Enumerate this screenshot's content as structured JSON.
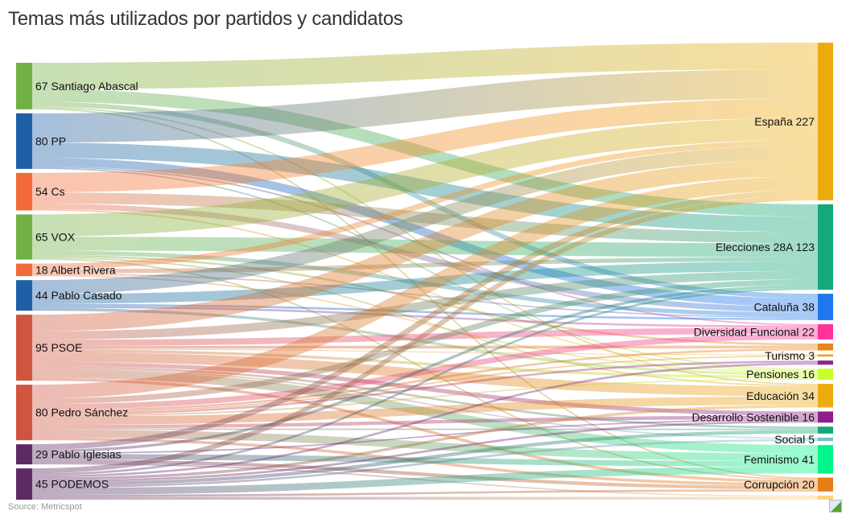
{
  "chart_data": {
    "type": "sankey",
    "title": "Temas más utilizados por partidos y candidatos",
    "source_note": "Source: Metricspot",
    "sources": [
      {
        "name": "Santiago Abascal",
        "value": 67,
        "color": "#72b043"
      },
      {
        "name": "PP",
        "value": 80,
        "color": "#1f5fa8"
      },
      {
        "name": "Cs",
        "value": 54,
        "color": "#f26a3a"
      },
      {
        "name": "VOX",
        "value": 65,
        "color": "#72b043"
      },
      {
        "name": "Albert Rivera",
        "value": 18,
        "color": "#f26a3a"
      },
      {
        "name": "Pablo Casado",
        "value": 44,
        "color": "#1f5fa8"
      },
      {
        "name": "PSOE",
        "value": 95,
        "color": "#d0553f"
      },
      {
        "name": "Pedro Sánchez",
        "value": 80,
        "color": "#d0553f"
      },
      {
        "name": "Pablo Iglesias",
        "value": 29,
        "color": "#5e2a64"
      },
      {
        "name": "PODEMOS",
        "value": 45,
        "color": "#5e2a64"
      }
    ],
    "targets": [
      {
        "name": "España",
        "value": 227,
        "color": "#eeab0f"
      },
      {
        "name": "Elecciones 28A",
        "value": 123,
        "color": "#14a87a"
      },
      {
        "name": "Cataluña",
        "value": 38,
        "color": "#1f77f0"
      },
      {
        "name": "Diversidad Funcional",
        "value": 22,
        "color": "#ff3399"
      },
      {
        "name": "",
        "value": 10,
        "color": "#e8851b"
      },
      {
        "name": "Turismo",
        "value": 3,
        "color": "#e6a81a"
      },
      {
        "name": "",
        "value": 6,
        "color": "#8a2a8a"
      },
      {
        "name": "Pensiones",
        "value": 16,
        "color": "#c8ff2a"
      },
      {
        "name": "Educación",
        "value": 34,
        "color": "#eeab0f"
      },
      {
        "name": "Desarrollo Sostenible",
        "value": 16,
        "color": "#8b1f8b"
      },
      {
        "name": "",
        "value": 10,
        "color": "#14a87a"
      },
      {
        "name": "Social",
        "value": 5,
        "color": "#6cc4cc"
      },
      {
        "name": "Feminismo",
        "value": 41,
        "color": "#00f58a"
      },
      {
        "name": "Corrupción",
        "value": 20,
        "color": "#e67e17"
      },
      {
        "name": "",
        "value": 6,
        "color": "#ffd27a"
      }
    ],
    "links": [
      [
        0,
        0,
        38
      ],
      [
        0,
        1,
        18
      ],
      [
        0,
        2,
        7
      ],
      [
        0,
        8,
        2
      ],
      [
        0,
        13,
        2
      ],
      [
        1,
        0,
        42
      ],
      [
        1,
        1,
        22
      ],
      [
        1,
        2,
        12
      ],
      [
        1,
        3,
        2
      ],
      [
        1,
        7,
        2
      ],
      [
        2,
        0,
        28
      ],
      [
        2,
        1,
        16
      ],
      [
        2,
        2,
        8
      ],
      [
        2,
        7,
        2
      ],
      [
        3,
        0,
        32
      ],
      [
        3,
        1,
        20
      ],
      [
        3,
        2,
        6
      ],
      [
        3,
        4,
        3
      ],
      [
        3,
        8,
        2
      ],
      [
        3,
        13,
        2
      ],
      [
        4,
        0,
        8
      ],
      [
        4,
        1,
        6
      ],
      [
        4,
        2,
        2
      ],
      [
        4,
        7,
        2
      ],
      [
        5,
        0,
        20
      ],
      [
        5,
        1,
        14
      ],
      [
        5,
        2,
        3
      ],
      [
        5,
        3,
        3
      ],
      [
        5,
        7,
        4
      ],
      [
        6,
        0,
        24
      ],
      [
        6,
        1,
        12
      ],
      [
        6,
        3,
        9
      ],
      [
        6,
        4,
        4
      ],
      [
        6,
        5,
        1
      ],
      [
        6,
        7,
        4
      ],
      [
        6,
        8,
        14
      ],
      [
        6,
        9,
        6
      ],
      [
        6,
        10,
        3
      ],
      [
        6,
        11,
        2
      ],
      [
        6,
        12,
        12
      ],
      [
        6,
        13,
        4
      ],
      [
        7,
        0,
        20
      ],
      [
        7,
        1,
        8
      ],
      [
        7,
        3,
        8
      ],
      [
        7,
        4,
        3
      ],
      [
        7,
        5,
        2
      ],
      [
        7,
        6,
        3
      ],
      [
        7,
        7,
        2
      ],
      [
        7,
        8,
        12
      ],
      [
        7,
        9,
        5
      ],
      [
        7,
        10,
        2
      ],
      [
        7,
        12,
        11
      ],
      [
        7,
        13,
        4
      ],
      [
        8,
        0,
        8
      ],
      [
        8,
        1,
        4
      ],
      [
        8,
        9,
        2
      ],
      [
        8,
        12,
        8
      ],
      [
        8,
        13,
        5
      ],
      [
        8,
        14,
        2
      ],
      [
        9,
        0,
        7
      ],
      [
        9,
        1,
        3
      ],
      [
        9,
        6,
        3
      ],
      [
        9,
        8,
        4
      ],
      [
        9,
        9,
        3
      ],
      [
        9,
        10,
        5
      ],
      [
        9,
        11,
        3
      ],
      [
        9,
        12,
        10
      ],
      [
        9,
        13,
        3
      ],
      [
        9,
        14,
        4
      ]
    ]
  }
}
